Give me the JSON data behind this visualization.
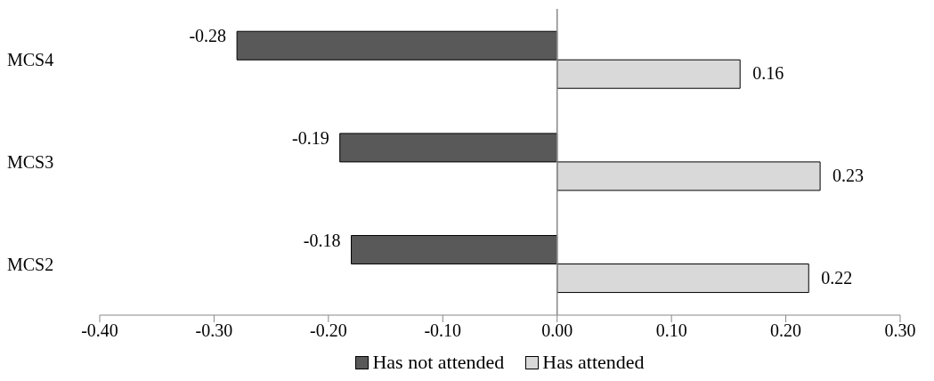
{
  "chart_data": {
    "type": "bar",
    "orientation": "horizontal",
    "categories": [
      "MCS4",
      "MCS3",
      "MCS2"
    ],
    "series": [
      {
        "name": "Has not attended",
        "color": "#595959",
        "values": [
          -0.28,
          -0.19,
          -0.18
        ]
      },
      {
        "name": "Has attended",
        "color": "#d9d9d9",
        "values": [
          0.16,
          0.23,
          0.22
        ]
      }
    ],
    "xlim": [
      -0.4,
      0.3
    ],
    "xticks": [
      {
        "value": -0.4,
        "label": "-0.40"
      },
      {
        "value": -0.3,
        "label": "-0.30"
      },
      {
        "value": -0.2,
        "label": "-0.20"
      },
      {
        "value": -0.1,
        "label": "-0.10"
      },
      {
        "value": 0,
        "label": "0.00"
      },
      {
        "value": 0.1,
        "label": "0.10"
      },
      {
        "value": 0.2,
        "label": "0.20"
      },
      {
        "value": 0.3,
        "label": "0.30"
      }
    ],
    "data_labels": true,
    "legend": "bottom"
  }
}
